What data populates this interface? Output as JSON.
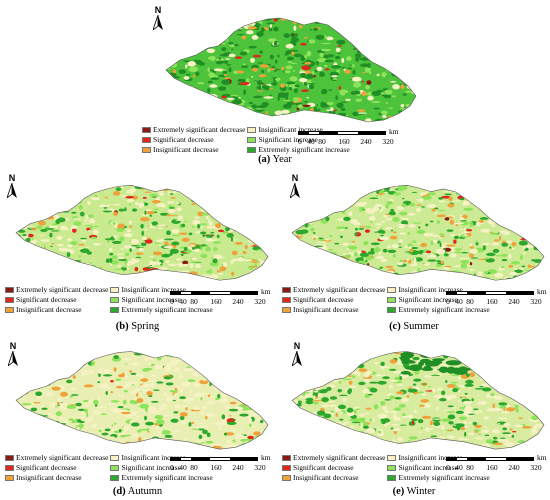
{
  "legend": {
    "items": [
      {
        "label": "Extremely significant decrease",
        "color": "#8b1a12"
      },
      {
        "label": "Insignificant increase",
        "color": "#f6f2c4"
      },
      {
        "label": "Significant decrease",
        "color": "#e3261c"
      },
      {
        "label": "Significant increase",
        "color": "#8de35a"
      },
      {
        "label": "Insignificant decrease",
        "color": "#f0a23a"
      },
      {
        "label": "Extremely significant increase",
        "color": "#2ca82c"
      }
    ]
  },
  "scalebar": {
    "unit": "km",
    "ticks": [
      "0",
      "40",
      "80",
      "160",
      "240",
      "320"
    ]
  },
  "north_label": "N",
  "panels": [
    {
      "id": "year",
      "letter": "(a)",
      "name": "Year"
    },
    {
      "id": "spring",
      "letter": "(b)",
      "name": "Spring"
    },
    {
      "id": "summer",
      "letter": "(c)",
      "name": "Summer"
    },
    {
      "id": "autumn",
      "letter": "(d)",
      "name": "Autumn"
    },
    {
      "id": "winter",
      "letter": "(e)",
      "name": "Winter"
    }
  ],
  "base_colors": {
    "year": "#4cc33a",
    "spring": "#c9ea8f",
    "summer": "#cdeb94",
    "autumn": "#e9efb2",
    "winter": "#d8ec9f"
  }
}
